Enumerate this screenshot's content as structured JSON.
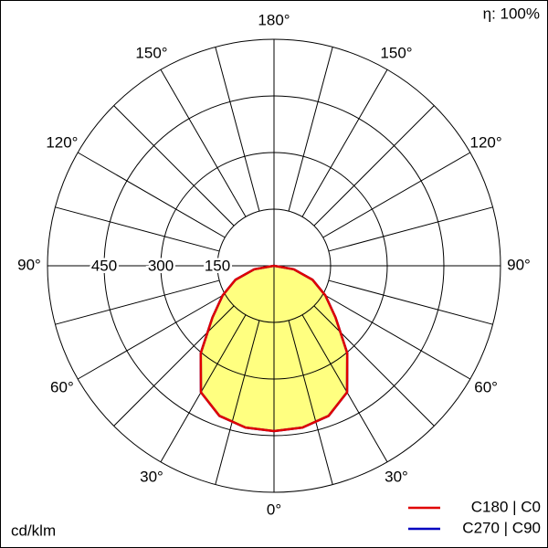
{
  "chart_data": {
    "type": "polar",
    "efficiency": "η: 100%",
    "unit": "cd/klm",
    "rlim": [
      0,
      600
    ],
    "rticks": [
      150,
      300,
      450
    ],
    "angle_ticks": [
      {
        "value": 0,
        "label": "0°"
      },
      {
        "value": 30,
        "label": "30°"
      },
      {
        "value": 60,
        "label": "60°"
      },
      {
        "value": 90,
        "label": "90°"
      },
      {
        "value": 120,
        "label": "120°"
      },
      {
        "value": 150,
        "label": "150°"
      },
      {
        "value": 180,
        "label": "180°"
      }
    ],
    "gamma": [
      0,
      10,
      20,
      30,
      40,
      50,
      60,
      70,
      80,
      90
    ],
    "fill": "#ffff80",
    "series": [
      {
        "name": "C270 | C90",
        "color": "#0000c0",
        "values": [
          438,
          435,
          423,
          387,
          302,
          213,
          157,
          109,
          53,
          0
        ]
      },
      {
        "name": "C180 | C0",
        "color": "#e00000",
        "values": [
          438,
          435,
          423,
          387,
          302,
          213,
          157,
          109,
          53,
          0
        ]
      }
    ]
  }
}
